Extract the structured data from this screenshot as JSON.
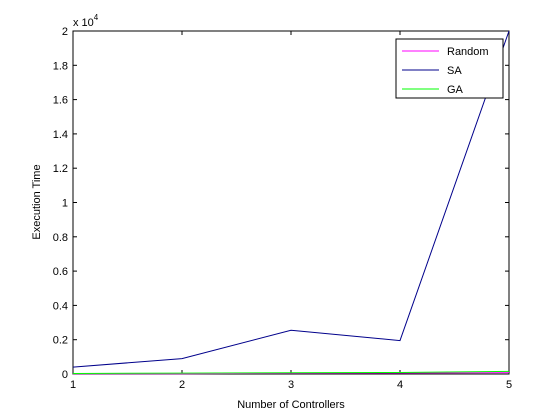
{
  "chart_data": {
    "type": "line",
    "title": "",
    "xlabel": "Number of Controllers",
    "ylabel": "Execution Time",
    "y_multiplier_base": "x 10",
    "y_multiplier_exp": "4",
    "y_multiplier_value": 10000,
    "x": [
      1,
      2,
      3,
      4,
      5
    ],
    "xlim": [
      1,
      5
    ],
    "ylim": [
      0,
      20000
    ],
    "x_ticks": [
      1,
      2,
      3,
      4,
      5
    ],
    "x_tick_labels": [
      "1",
      "2",
      "3",
      "4",
      "5"
    ],
    "y_ticks": [
      0,
      2000,
      4000,
      6000,
      8000,
      10000,
      12000,
      14000,
      16000,
      18000,
      20000
    ],
    "y_tick_labels": [
      "0",
      "0.2",
      "0.4",
      "0.6",
      "0.8",
      "1",
      "1.2",
      "1.4",
      "1.6",
      "1.8",
      "2"
    ],
    "grid": false,
    "legend_position": "top-right",
    "series": [
      {
        "name": "Random",
        "color": "#ff00ff",
        "values": [
          10,
          20,
          40,
          60,
          80
        ]
      },
      {
        "name": "SA",
        "color": "#00008b",
        "values": [
          400,
          900,
          2550,
          1950,
          20000
        ]
      },
      {
        "name": "GA",
        "color": "#00ff00",
        "values": [
          30,
          50,
          70,
          90,
          150
        ]
      }
    ]
  }
}
